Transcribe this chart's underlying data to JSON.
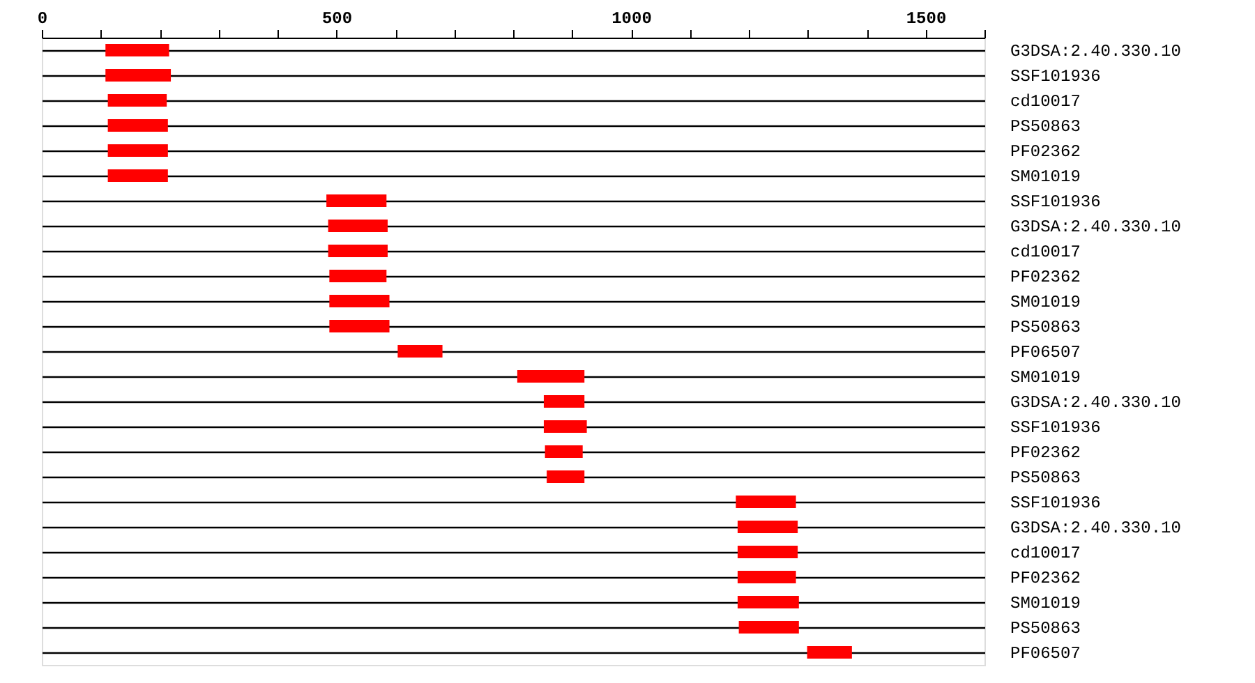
{
  "chart_data": {
    "type": "bar",
    "orientation": "horizontal",
    "categories": [
      "G3DSA:2.40.330.10",
      "SSF101936",
      "cd10017",
      "PS50863",
      "PF02362",
      "SM01019",
      "SSF101936",
      "G3DSA:2.40.330.10",
      "cd10017",
      "PF02362",
      "SM01019",
      "PS50863",
      "PF06507",
      "SM01019",
      "G3DSA:2.40.330.10",
      "SSF101936",
      "PF02362",
      "PS50863",
      "SSF101936",
      "G3DSA:2.40.330.10",
      "cd10017",
      "PF02362",
      "SM01019",
      "PS50863",
      "PF06507"
    ],
    "base": [
      108,
      108,
      112,
      112,
      112,
      112,
      483,
      486,
      486,
      488,
      488,
      488,
      604,
      807,
      852,
      852,
      854,
      857,
      1178,
      1181,
      1181,
      1181,
      1181,
      1183,
      1299
    ],
    "values": [
      108,
      111,
      100,
      102,
      102,
      102,
      102,
      101,
      101,
      97,
      102,
      102,
      76,
      114,
      69,
      73,
      64,
      64,
      102,
      102,
      102,
      99,
      104,
      102,
      76
    ],
    "color": "#ff0000",
    "xlim": [
      0,
      1600
    ],
    "xticks": [
      0,
      {
        "value": 100,
        "label": null
      },
      {
        "value": 200,
        "label": null
      },
      {
        "value": 300,
        "label": null
      },
      {
        "value": 400,
        "label": null
      },
      500,
      {
        "value": 600,
        "label": null
      },
      {
        "value": 700,
        "label": null
      },
      {
        "value": 800,
        "label": null
      },
      {
        "value": 900,
        "label": null
      },
      1000,
      {
        "value": 1100,
        "label": null
      },
      {
        "value": 1200,
        "label": null
      },
      {
        "value": 1300,
        "label": null
      },
      {
        "value": 1400,
        "label": null
      },
      1500,
      {
        "value": 1600,
        "label": null
      }
    ],
    "grid": "y"
  }
}
